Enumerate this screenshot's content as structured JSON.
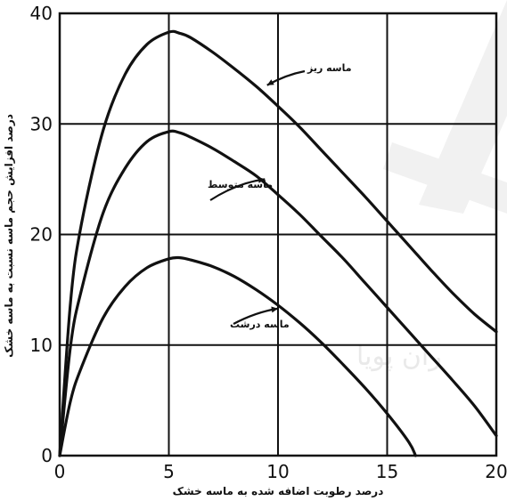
{
  "chart_data": {
    "type": "line",
    "title": "",
    "xlabel": "درصد رطوبت اضافه شده به ماسه خشک",
    "ylabel": "درصد افزایش حجم ماسه نسبت به ماسه خشک",
    "xlim": [
      0,
      20
    ],
    "ylim": [
      0,
      40
    ],
    "xticks": [
      0,
      5,
      10,
      15,
      20
    ],
    "yticks": [
      0,
      10,
      20,
      30,
      40
    ],
    "grid": true,
    "series": [
      {
        "name": "ماسه ریز",
        "x": [
          0,
          0.5,
          1,
          2,
          3,
          4,
          5,
          5.5,
          6,
          7,
          8,
          9,
          10,
          11,
          12,
          13,
          14,
          15,
          16,
          17,
          18,
          19,
          20
        ],
        "y": [
          0,
          14,
          21,
          29.5,
          34.5,
          37.2,
          38.3,
          38.2,
          37.8,
          36.5,
          35,
          33.4,
          31.6,
          29.7,
          27.6,
          25.5,
          23.4,
          21.2,
          19,
          16.8,
          14.7,
          12.8,
          11.2
        ]
      },
      {
        "name": "ماسه متوسط",
        "x": [
          0,
          0.5,
          1,
          2,
          3,
          4,
          5,
          5.5,
          6,
          7,
          8,
          9,
          10,
          11,
          12,
          13,
          14,
          15,
          16,
          17,
          18,
          19,
          20
        ],
        "y": [
          0,
          10,
          15,
          22,
          26,
          28.4,
          29.3,
          29.2,
          28.8,
          27.8,
          26.6,
          25.3,
          23.6,
          21.8,
          19.8,
          17.8,
          15.6,
          13.4,
          11.2,
          9,
          6.8,
          4.5,
          1.8
        ]
      },
      {
        "name": "ماسه درشت",
        "x": [
          0,
          0.5,
          1,
          2,
          3,
          4,
          5,
          5.5,
          6,
          7,
          8,
          9,
          10,
          11,
          12,
          13,
          14,
          15,
          16,
          16.3
        ],
        "y": [
          0,
          5,
          8,
          12.5,
          15.3,
          17,
          17.8,
          17.9,
          17.7,
          17.1,
          16.2,
          15,
          13.6,
          12,
          10.2,
          8.2,
          6.1,
          3.8,
          1.2,
          0
        ]
      }
    ],
    "annotations": [
      {
        "text": "ماسه ریز",
        "series": 0,
        "x": 9.5,
        "y": 33.5
      },
      {
        "text": "ماسه متوسط",
        "series": 1,
        "x": 9.4,
        "y": 25
      },
      {
        "text": "ماسه درشت",
        "series": 2,
        "x": 10,
        "y": 13.3
      }
    ]
  },
  "watermark": {
    "text": "ران پویا",
    "color": "#d8d8d8"
  }
}
